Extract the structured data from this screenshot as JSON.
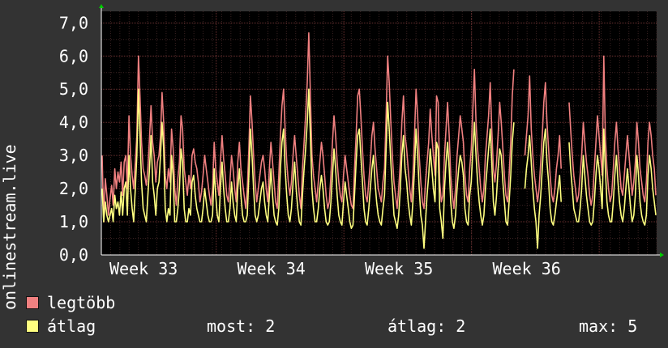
{
  "chart_data": {
    "type": "line",
    "ylabel": "onlinestream.live",
    "ylim": [
      0,
      7.35
    ],
    "yticks": [
      "0,0",
      "1,0",
      "2,0",
      "3,0",
      "4,0",
      "5,0",
      "6,0",
      "7,0"
    ],
    "x_tick_labels": [
      "Week 33",
      "Week 34",
      "Week 35",
      "Week 36"
    ],
    "x_tick_positions": [
      0.5,
      1.5,
      2.5,
      3.5
    ],
    "xlim": [
      0,
      4.35
    ],
    "grid": true,
    "series": [
      {
        "name": "legtöbb",
        "color": "#f08080",
        "values": [
          3.0,
          1.0,
          2.3,
          1.8,
          1.2,
          1.7,
          2.1,
          1.5,
          2.6,
          2.0,
          2.5,
          2.2,
          2.8,
          1.8,
          2.8,
          3.0,
          2.0,
          4.2,
          3.0,
          2.4,
          2.0,
          2.8,
          3.6,
          6.0,
          4.8,
          3.4,
          2.6,
          2.4,
          2.1,
          2.6,
          3.5,
          4.5,
          3.4,
          3.0,
          2.2,
          2.8,
          3.0,
          3.6,
          4.9,
          4.0,
          2.4,
          2.0,
          2.6,
          2.2,
          3.8,
          3.2,
          2.0,
          1.5,
          2.3,
          2.8,
          4.2,
          3.8,
          2.6,
          2.2,
          1.8,
          2.4,
          2.0,
          3.0,
          3.2,
          2.8,
          2.6,
          2.2,
          1.6,
          1.9,
          2.4,
          3.0,
          2.6,
          2.2,
          1.8,
          1.5,
          2.0,
          3.4,
          2.6,
          2.2,
          1.8,
          2.8,
          3.6,
          2.9,
          2.4,
          1.8,
          1.6,
          2.2,
          3.0,
          2.6,
          2.0,
          1.6,
          2.8,
          3.4,
          2.6,
          2.2,
          1.8,
          1.4,
          2.0,
          3.2,
          4.8,
          4.0,
          3.0,
          2.2,
          1.6,
          2.0,
          2.4,
          2.8,
          3.0,
          2.6,
          2.0,
          1.6,
          2.6,
          3.4,
          2.8,
          2.2,
          1.6,
          1.4,
          2.4,
          3.6,
          4.5,
          5.0,
          3.8,
          2.8,
          2.2,
          1.8,
          2.2,
          3.0,
          3.6,
          3.0,
          2.4,
          1.8,
          1.4,
          2.6,
          3.4,
          4.2,
          5.2,
          6.7,
          4.8,
          3.0,
          2.4,
          2.0,
          1.6,
          2.2,
          2.8,
          3.4,
          3.0,
          2.4,
          1.8,
          1.4,
          1.6,
          2.4,
          3.4,
          4.2,
          3.6,
          2.8,
          2.2,
          1.8,
          1.6,
          2.4,
          3.0,
          2.6,
          2.2,
          1.8,
          1.5,
          1.4,
          2.6,
          3.6,
          4.8,
          5.0,
          4.2,
          3.2,
          2.4,
          1.8,
          1.6,
          2.2,
          2.8,
          3.6,
          4.0,
          3.2,
          2.6,
          2.0,
          1.8,
          1.6,
          2.2,
          2.6,
          4.2,
          6.0,
          5.2,
          4.0,
          3.0,
          2.2,
          1.8,
          1.4,
          2.0,
          2.8,
          4.0,
          4.8,
          3.6,
          3.2,
          2.6,
          2.0,
          1.6,
          2.4,
          3.6,
          5.0,
          4.2,
          3.0,
          2.2,
          1.6,
          1.4,
          2.2,
          2.8,
          3.4,
          4.4,
          3.6,
          3.0,
          2.4,
          4.8,
          4.6,
          2.2,
          1.6,
          1.8,
          3.0,
          3.8,
          4.6,
          3.6,
          2.4,
          1.8,
          1.4,
          2.0,
          3.0,
          3.6,
          4.2,
          3.8,
          3.4,
          2.4,
          1.8,
          1.6,
          2.6,
          3.2,
          4.4,
          5.6,
          4.0,
          3.2,
          2.6,
          2.0,
          1.6,
          2.0,
          3.0,
          3.6,
          4.2,
          5.2,
          3.8,
          2.6,
          2.2,
          2.8,
          3.6,
          4.6,
          4.0,
          3.2,
          2.4,
          1.8,
          1.6,
          2.4,
          3.4,
          4.8,
          5.6,
          4.4,
          3.6,
          2.8,
          2.2,
          1.8,
          2.4,
          3.0,
          3.6,
          4.2,
          5.4,
          3.8,
          3.0,
          2.4,
          2.0,
          1.6,
          2.0,
          2.8,
          3.6,
          4.6,
          5.2,
          4.0,
          3.2,
          2.4,
          1.8,
          1.6,
          2.0,
          2.6,
          3.0,
          3.6,
          2.6,
          2.0,
          1.8,
          2.2,
          3.6,
          4.6,
          3.8,
          3.0,
          2.4,
          2.0,
          1.6,
          1.8,
          2.4,
          3.0,
          4.0,
          3.4,
          2.8,
          2.4,
          1.8,
          1.5,
          1.8,
          2.6,
          3.4,
          4.2,
          3.6,
          3.0,
          2.4,
          6.0,
          3.6,
          2.6,
          2.0,
          1.6,
          1.8,
          2.6,
          3.4,
          4.0,
          3.2,
          2.6,
          2.0,
          1.8,
          2.4,
          3.0,
          3.6,
          3.0,
          2.4,
          1.8,
          2.2,
          2.8,
          4.0,
          3.4,
          2.6,
          2.2,
          1.8,
          1.6,
          2.2,
          3.4,
          4.0,
          3.6,
          3.0,
          2.6,
          1.8
        ]
      },
      {
        "name": "átlag",
        "color": "#ffff80",
        "values": [
          2.0,
          1.0,
          1.6,
          1.2,
          1.0,
          1.2,
          1.4,
          1.0,
          1.8,
          1.4,
          1.6,
          1.2,
          1.9,
          1.2,
          2.0,
          2.2,
          1.2,
          3.0,
          2.0,
          1.4,
          1.0,
          2.0,
          3.0,
          5.0,
          3.6,
          2.2,
          1.4,
          1.2,
          1.0,
          1.8,
          2.6,
          3.6,
          2.2,
          1.8,
          1.2,
          2.0,
          2.2,
          3.0,
          4.0,
          3.2,
          1.4,
          1.0,
          1.4,
          1.2,
          3.0,
          2.4,
          1.0,
          1.0,
          1.4,
          2.0,
          3.2,
          2.8,
          1.4,
          1.0,
          1.0,
          1.4,
          1.2,
          2.2,
          2.4,
          1.8,
          1.4,
          1.2,
          1.0,
          1.0,
          1.4,
          2.0,
          1.6,
          1.2,
          1.0,
          1.0,
          1.2,
          2.6,
          1.8,
          1.2,
          1.0,
          2.0,
          2.8,
          2.0,
          1.4,
          1.0,
          1.0,
          1.4,
          2.2,
          1.6,
          1.2,
          1.0,
          2.0,
          2.6,
          1.8,
          1.2,
          1.0,
          1.0,
          1.2,
          2.4,
          3.8,
          3.0,
          2.0,
          1.2,
          1.0,
          1.2,
          1.6,
          2.0,
          2.2,
          1.6,
          1.2,
          1.0,
          1.8,
          2.6,
          1.8,
          1.2,
          1.0,
          0.9,
          1.4,
          2.6,
          3.4,
          3.8,
          2.6,
          1.8,
          1.2,
          1.0,
          1.4,
          2.2,
          2.8,
          2.0,
          1.4,
          1.0,
          0.9,
          1.8,
          2.6,
          3.2,
          4.0,
          5.0,
          3.6,
          2.0,
          1.4,
          1.0,
          1.0,
          1.4,
          2.0,
          2.4,
          2.0,
          1.4,
          1.0,
          0.9,
          1.0,
          1.6,
          2.4,
          3.2,
          2.6,
          1.8,
          1.2,
          1.0,
          0.9,
          1.6,
          2.2,
          1.8,
          1.4,
          1.0,
          0.8,
          0.9,
          1.8,
          2.8,
          3.6,
          3.8,
          3.0,
          2.2,
          1.4,
          1.0,
          0.9,
          1.4,
          2.0,
          2.6,
          3.0,
          2.2,
          1.6,
          1.2,
          1.0,
          0.9,
          1.4,
          1.8,
          3.2,
          4.6,
          3.8,
          2.8,
          2.0,
          1.2,
          1.0,
          0.8,
          1.2,
          2.0,
          3.0,
          3.6,
          2.6,
          2.2,
          1.6,
          1.2,
          0.9,
          1.6,
          2.6,
          3.8,
          3.0,
          2.0,
          1.2,
          0.9,
          0.2,
          1.0,
          1.8,
          2.4,
          3.2,
          2.6,
          2.0,
          1.6,
          3.4,
          3.2,
          1.4,
          1.0,
          0.5,
          2.0,
          2.8,
          3.4,
          2.6,
          1.6,
          1.0,
          0.8,
          1.2,
          2.0,
          2.6,
          3.0,
          2.8,
          2.4,
          1.4,
          1.0,
          0.9,
          1.8,
          2.2,
          3.2,
          4.0,
          3.0,
          2.2,
          1.6,
          1.2,
          0.9,
          1.2,
          2.0,
          2.6,
          3.2,
          3.8,
          2.8,
          1.6,
          1.2,
          1.8,
          2.6,
          3.2,
          3.0,
          2.2,
          1.6,
          1.0,
          0.9,
          1.6,
          2.4,
          3.4,
          4.0,
          3.2,
          2.6,
          1.8,
          1.2,
          1.0,
          1.4,
          2.0,
          2.6,
          3.0,
          3.6,
          2.8,
          2.0,
          1.4,
          1.0,
          0.2,
          1.2,
          1.8,
          2.6,
          3.4,
          3.8,
          2.8,
          2.2,
          1.4,
          1.0,
          0.9,
          1.2,
          1.6,
          2.0,
          2.4,
          1.6,
          1.2,
          1.0,
          1.2,
          2.6,
          3.4,
          2.6,
          2.0,
          1.4,
          1.2,
          1.0,
          1.0,
          1.4,
          2.0,
          3.0,
          2.4,
          1.8,
          1.4,
          1.0,
          0.9,
          1.0,
          1.6,
          2.4,
          3.0,
          2.6,
          2.0,
          1.4,
          3.8,
          2.6,
          1.6,
          1.2,
          1.0,
          1.0,
          1.6,
          2.4,
          3.0,
          2.2,
          1.6,
          1.2,
          1.0,
          1.4,
          2.0,
          2.6,
          2.0,
          1.4,
          1.0,
          1.2,
          1.8,
          3.0,
          2.4,
          1.6,
          1.2,
          1.0,
          0.9,
          1.2,
          2.4,
          3.0,
          2.6,
          2.0,
          1.6,
          1.2
        ]
      }
    ],
    "gaps": [
      [
        262,
        268
      ],
      [
        292,
        296
      ]
    ]
  },
  "legend": {
    "items": [
      {
        "label": "legtöbb",
        "color": "#f08080"
      },
      {
        "label": "átlag",
        "color": "#ffff80"
      }
    ]
  },
  "stats": {
    "most": "most: 2",
    "atlag": "átlag: 2",
    "max": "max: 5"
  }
}
